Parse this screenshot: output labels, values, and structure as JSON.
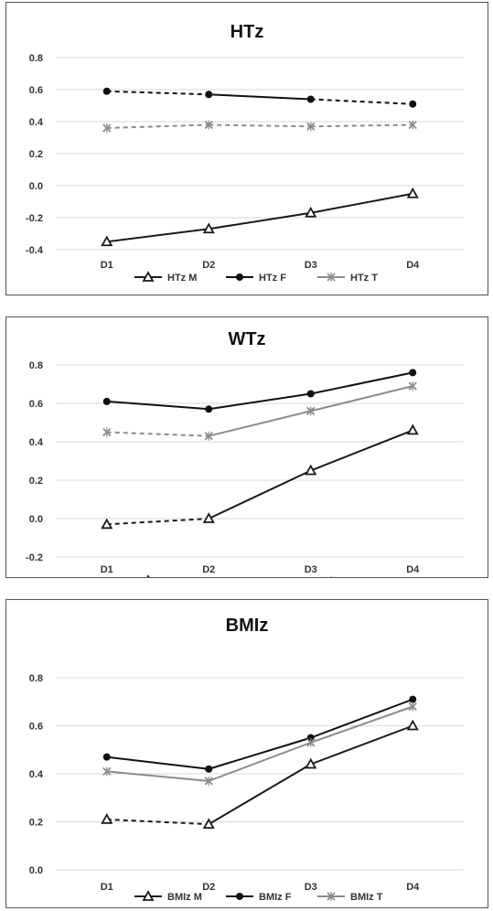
{
  "colors": {
    "M": "#1a1a1a",
    "F": "#111111",
    "T": "#8c8c8c",
    "grid": "#d9d9d9"
  },
  "chart_data": [
    {
      "type": "line",
      "title": "HTz",
      "categories": [
        "D1",
        "D2",
        "D3",
        "D4"
      ],
      "ylim": [
        -0.4,
        0.8
      ],
      "yticks": [
        "0.8",
        "0.6",
        "0.4",
        "0.2",
        "0.0",
        "-0.2",
        "-0.4"
      ],
      "grid": "horizontal",
      "legend": "bottom",
      "series": [
        {
          "name": "HTz M",
          "key": "M",
          "marker": "triangle",
          "values": [
            -0.35,
            -0.27,
            -0.17,
            -0.05
          ],
          "dashed_segments": []
        },
        {
          "name": "HTz F",
          "key": "F",
          "marker": "circle",
          "values": [
            0.59,
            0.57,
            0.54,
            0.51
          ],
          "dashed_segments": [
            0,
            2
          ]
        },
        {
          "name": "HTz T",
          "key": "T",
          "marker": "x",
          "values": [
            0.36,
            0.38,
            0.37,
            0.38
          ],
          "dashed_segments": [
            0,
            1,
            2
          ]
        }
      ]
    },
    {
      "type": "line",
      "title": "WTz",
      "categories": [
        "D1",
        "D2",
        "D3",
        "D4"
      ],
      "ylim": [
        -0.2,
        0.8
      ],
      "yticks": [
        "0.8",
        "0.6",
        "0.4",
        "0.2",
        "0.0",
        "-0.2"
      ],
      "grid": "horizontal",
      "legend": "bottom",
      "series": [
        {
          "name": "WTz M",
          "key": "M",
          "marker": "triangle",
          "values": [
            -0.03,
            0.0,
            0.25,
            0.46
          ],
          "dashed_segments": [
            0
          ]
        },
        {
          "name": "WTz F",
          "key": "F",
          "marker": "circle",
          "values": [
            0.61,
            0.57,
            0.65,
            0.76
          ],
          "dashed_segments": []
        },
        {
          "name": "WTz T",
          "key": "T",
          "marker": "x",
          "values": [
            0.45,
            0.43,
            0.56,
            0.69
          ],
          "dashed_segments": [
            0
          ]
        }
      ]
    },
    {
      "type": "line",
      "title": "BMIz",
      "categories": [
        "D1",
        "D2",
        "D3",
        "D4"
      ],
      "ylim": [
        0.0,
        0.8
      ],
      "yticks": [
        "0.8",
        "0.6",
        "0.4",
        "0.2",
        "0.0"
      ],
      "grid": "horizontal",
      "legend": "bottom",
      "series": [
        {
          "name": "BMIz M",
          "key": "M",
          "marker": "triangle",
          "values": [
            0.21,
            0.19,
            0.44,
            0.6
          ],
          "dashed_segments": [
            0
          ]
        },
        {
          "name": "BMIz F",
          "key": "F",
          "marker": "circle",
          "values": [
            0.47,
            0.42,
            0.55,
            0.71
          ],
          "dashed_segments": []
        },
        {
          "name": "BMIz T",
          "key": "T",
          "marker": "x",
          "values": [
            0.41,
            0.37,
            0.53,
            0.68
          ],
          "dashed_segments": []
        }
      ]
    }
  ]
}
